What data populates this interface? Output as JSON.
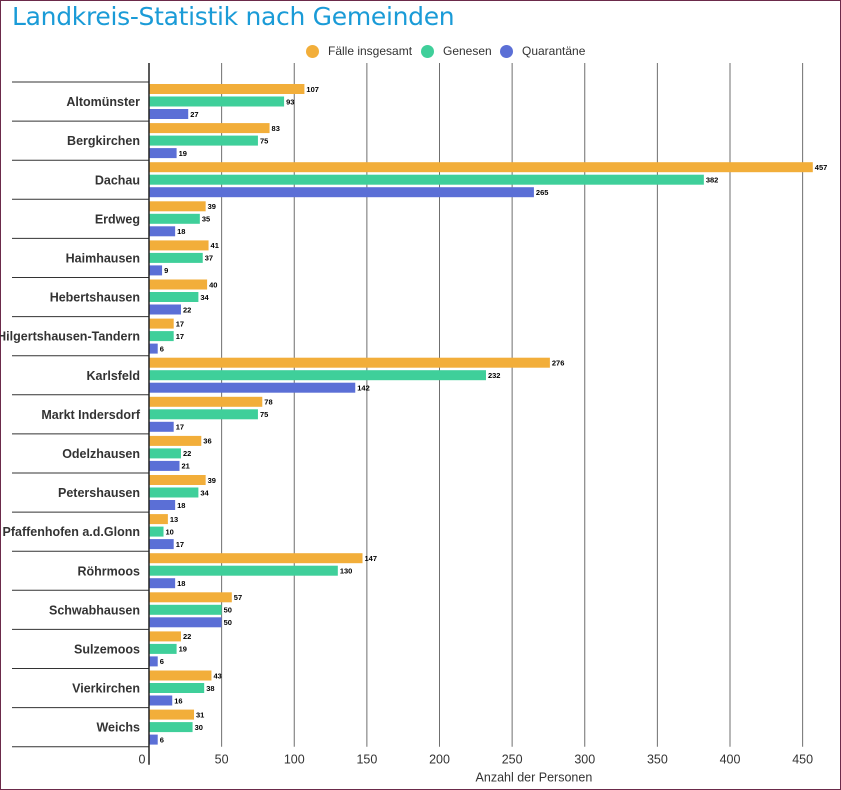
{
  "title": "Landkreis-Statistik nach Gemeinden",
  "colors": {
    "title": "#1a9bd7",
    "faelle": "#f2ae3a",
    "genesen": "#3fcf9a",
    "quarantaene": "#5b6fd6",
    "border": "#6b2a4a"
  },
  "chart_data": {
    "type": "bar",
    "orientation": "horizontal",
    "title": "Landkreis-Statistik nach Gemeinden",
    "xlabel": "Anzahl der Personen",
    "ylabel": "",
    "xlim": [
      0,
      460
    ],
    "xticks": [
      0,
      50,
      100,
      150,
      200,
      250,
      300,
      350,
      400,
      450
    ],
    "grid": true,
    "legend_position": "top",
    "categories": [
      "Altomünster",
      "Bergkirchen",
      "Dachau",
      "Erdweg",
      "Haimhausen",
      "Hebertshausen",
      "Hilgertshausen-Tandern",
      "Karlsfeld",
      "Markt Indersdorf",
      "Odelzhausen",
      "Petershausen",
      "Pfaffenhofen a.d.Glonn",
      "Röhrmoos",
      "Schwabhausen",
      "Sulzemoos",
      "Vierkirchen",
      "Weichs"
    ],
    "series": [
      {
        "name": "Fälle insgesamt",
        "color": "#f2ae3a",
        "values": [
          107,
          83,
          457,
          39,
          41,
          40,
          17,
          276,
          78,
          36,
          39,
          13,
          147,
          57,
          22,
          43,
          31
        ]
      },
      {
        "name": "Genesen",
        "color": "#3fcf9a",
        "values": [
          93,
          75,
          382,
          35,
          37,
          34,
          17,
          232,
          75,
          22,
          34,
          10,
          130,
          50,
          19,
          38,
          30
        ]
      },
      {
        "name": "Quarantäne",
        "color": "#5b6fd6",
        "values": [
          27,
          19,
          265,
          18,
          9,
          22,
          6,
          142,
          17,
          21,
          18,
          17,
          18,
          50,
          6,
          16,
          6
        ]
      }
    ]
  }
}
